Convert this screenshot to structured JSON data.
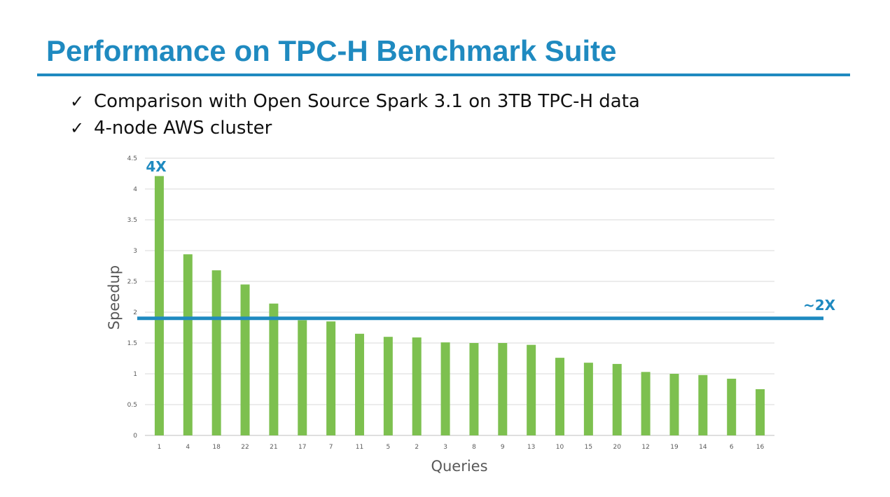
{
  "slide": {
    "title": "Performance on TPC-H Benchmark Suite",
    "accent_color": "#1f8ac0",
    "check_icon": "✓",
    "bullets": [
      "Comparison with Open Source Spark 3.1 on 3TB TPC-H data",
      "4-node AWS cluster"
    ]
  },
  "chart_data": {
    "type": "bar",
    "xlabel": "Queries",
    "ylabel": "Speedup",
    "ylim": [
      0,
      4.5
    ],
    "yticks": [
      0,
      0.5,
      1,
      1.5,
      2,
      2.5,
      3,
      3.5,
      4,
      4.5
    ],
    "ytick_labels": [
      "0",
      "0.5",
      "1",
      "1.5",
      "2",
      "2.5",
      "3",
      "3.5",
      "4",
      "4.5"
    ],
    "grid": true,
    "bar_color": "#7dc04f",
    "categories": [
      "1",
      "4",
      "18",
      "22",
      "21",
      "17",
      "7",
      "11",
      "5",
      "2",
      "3",
      "8",
      "9",
      "13",
      "10",
      "15",
      "20",
      "12",
      "19",
      "14",
      "6",
      "16"
    ],
    "values": [
      4.21,
      2.94,
      2.68,
      2.45,
      2.14,
      1.87,
      1.85,
      1.65,
      1.6,
      1.59,
      1.51,
      1.5,
      1.5,
      1.47,
      1.26,
      1.18,
      1.16,
      1.03,
      1.0,
      0.98,
      0.92,
      0.75
    ],
    "reference_line": {
      "value": 1.9,
      "label": "~2X",
      "color": "#1f8ac0"
    },
    "peak_annotation": {
      "label": "4X",
      "category": "1",
      "color": "#1f8ac0"
    }
  }
}
